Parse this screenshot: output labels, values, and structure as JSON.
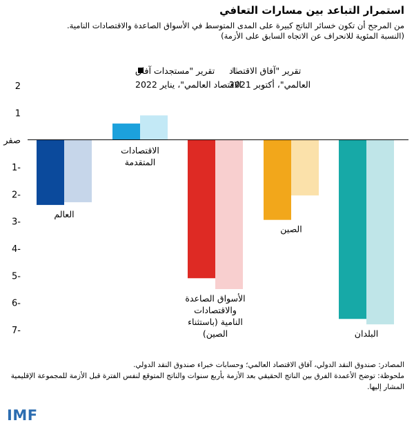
{
  "chart_data": {
    "type": "bar",
    "title": "استمرار التباعد بين مسارات التعافي",
    "subtitle": "من المرجح أن تكون خسائر الناتج كبيرة على المدى المتوسط في الأسواق الصاعدة والاقتصادات النامية.",
    "unit_note": "(النسبة المئوية للانحراف عن الاتجاه السابق على الأزمة)",
    "ylim": [
      -7,
      2
    ],
    "yticks": [
      {
        "value": 2,
        "label": "2"
      },
      {
        "value": 1,
        "label": "1"
      },
      {
        "value": 0,
        "label": "صفر"
      },
      {
        "value": -1,
        "label": "1-"
      },
      {
        "value": -2,
        "label": "2-"
      },
      {
        "value": -3,
        "label": "3-"
      },
      {
        "value": -4,
        "label": "4-"
      },
      {
        "value": -5,
        "label": "5-"
      },
      {
        "value": -6,
        "label": "6-"
      },
      {
        "value": -7,
        "label": "7-"
      }
    ],
    "legend": [
      {
        "label": "تقرير \"مستجدات آفاق الاقتصاد العالمي\"، يناير 2022",
        "color": "#000000"
      },
      {
        "label": "تقرير \"آفاق الاقتصاد العالمي\"، أكتوبر 2021",
        "color": "#cccccc"
      }
    ],
    "categories": [
      {
        "label": [
          "العالم"
        ],
        "label_pos": "below_bar",
        "jan2022": -2.4,
        "oct2021": -2.3,
        "dark": "#0b4a9c",
        "light": "#c6d6ea"
      },
      {
        "label": [
          "الاقتصادات",
          "المتقدمة"
        ],
        "label_pos": "below_zero",
        "jan2022": 0.6,
        "oct2021": 0.9,
        "dark": "#1ca1dc",
        "light": "#c3e9f6"
      },
      {
        "label": [
          "الأسواق الصاعدة",
          "والاقتصادات",
          "النامية (باستثناء",
          "الصين)"
        ],
        "label_pos": "below_bar",
        "jan2022": -5.1,
        "oct2021": -5.5,
        "dark": "#de2a24",
        "light": "#f8cfcf"
      },
      {
        "label": [
          "الصين"
        ],
        "label_pos": "below_bar",
        "jan2022": -2.95,
        "oct2021": -2.05,
        "dark": "#f2a71b",
        "light": "#fbe1aa"
      },
      {
        "label": [
          "البلدان"
        ],
        "label_pos": "below_bar",
        "jan2022": -6.6,
        "oct2021": -6.8,
        "dark": "#17a9a7",
        "light": "#bfe5e8"
      }
    ]
  },
  "footer": {
    "sources": "المصادر: صندوق النقد الدولي، آفاق الاقتصاد العالمي؛ وحسابات خبراء صندوق النقد الدولي.",
    "note": "ملحوظة: توضح الأعمدة الفرق بين الناتج الحقيقي بعد الأزمة بأربع سنوات والناتج المتوقع لنفس الفترة قبل الأزمة للمجموعة الإقليمية المشار إليها."
  },
  "brand": {
    "logo": "IMF",
    "color": "#2b6cb0"
  }
}
